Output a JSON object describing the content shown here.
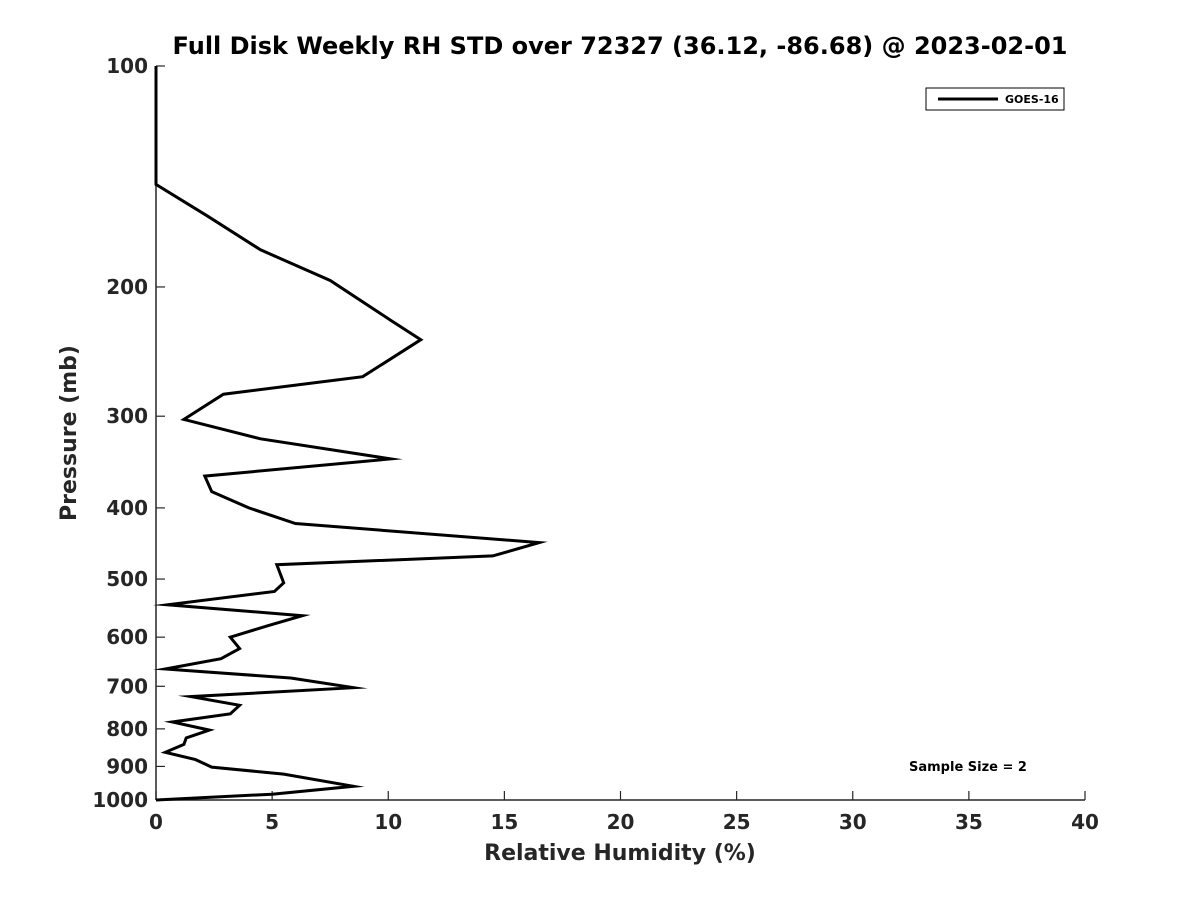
{
  "chart_data": {
    "type": "line",
    "title": "Full Disk Weekly RH STD over 72327 (36.12, -86.68) @ 2023-02-01",
    "xlabel": "Relative Humidity (%)",
    "ylabel": "Pressure (mb)",
    "xlim": [
      0,
      40
    ],
    "ylim": [
      100,
      1000
    ],
    "y_scale": "log",
    "y_reversed": true,
    "grid": false,
    "x_ticks": [
      0,
      5,
      10,
      15,
      20,
      25,
      30,
      35,
      40
    ],
    "y_ticks": [
      100,
      200,
      300,
      400,
      500,
      600,
      700,
      800,
      900,
      1000
    ],
    "x_tick_labels": [
      "0",
      "5",
      "10",
      "15",
      "20",
      "25",
      "30",
      "35",
      "40"
    ],
    "y_tick_labels": [
      "100",
      "200",
      "300",
      "400",
      "500",
      "600",
      "700",
      "800",
      "900",
      "1000"
    ],
    "legend_position": "top-right",
    "annotation": "Sample Size = 2",
    "series": [
      {
        "name": "GOES-16",
        "color": "#000000",
        "points": [
          [
            0,
            100
          ],
          [
            0,
            105
          ],
          [
            0,
            110
          ],
          [
            0,
            115
          ],
          [
            0,
            120
          ],
          [
            0,
            126
          ],
          [
            0,
            132
          ],
          [
            0,
            138
          ],
          [
            0,
            145
          ],
          [
            2.2,
            160
          ],
          [
            4.5,
            178
          ],
          [
            7.5,
            196
          ],
          [
            10.1,
            222
          ],
          [
            11.4,
            236
          ],
          [
            8.9,
            265
          ],
          [
            2.9,
            280
          ],
          [
            1.2,
            303
          ],
          [
            4.5,
            322
          ],
          [
            10.1,
            343
          ],
          [
            2.1,
            362
          ],
          [
            2.4,
            380
          ],
          [
            4.0,
            400
          ],
          [
            6.0,
            420
          ],
          [
            16.5,
            446
          ],
          [
            14.5,
            465
          ],
          [
            5.2,
            478
          ],
          [
            5.5,
            506
          ],
          [
            5.1,
            520
          ],
          [
            0.5,
            542
          ],
          [
            6.3,
            561
          ],
          [
            4.8,
            579
          ],
          [
            3.2,
            600
          ],
          [
            3.6,
            622
          ],
          [
            2.8,
            642
          ],
          [
            0.4,
            663
          ],
          [
            5.8,
            682
          ],
          [
            8.5,
            703
          ],
          [
            1.5,
            723
          ],
          [
            3.6,
            743
          ],
          [
            3.2,
            763
          ],
          [
            0.7,
            783
          ],
          [
            2.3,
            803
          ],
          [
            1.3,
            823
          ],
          [
            1.2,
            840
          ],
          [
            0.4,
            861
          ],
          [
            1.7,
            881
          ],
          [
            2.4,
            902
          ],
          [
            5.5,
            922
          ],
          [
            8.5,
            958
          ],
          [
            5.0,
            982
          ],
          [
            0,
            1000
          ]
        ]
      }
    ]
  }
}
